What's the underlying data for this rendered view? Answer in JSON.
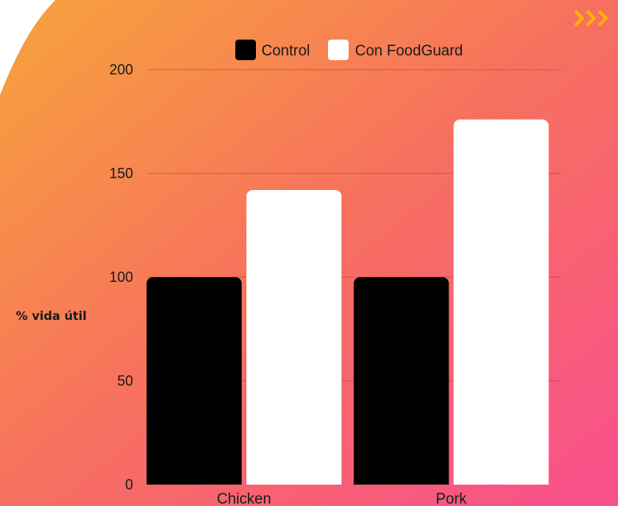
{
  "colors": {
    "gradient_start": "#f7a33b",
    "gradient_mid": "#f7705f",
    "gradient_end": "#f84f8e",
    "control": "#000000",
    "foodguard": "#ffffff",
    "accent_chevrons": "#ffb300"
  },
  "decorations": {
    "chevrons_icon": "triple-chevron-right-icon"
  },
  "chart_data": {
    "type": "bar",
    "categories": [
      "Chicken",
      "Pork"
    ],
    "series": [
      {
        "name": "Control",
        "values": [
          100,
          100
        ]
      },
      {
        "name": "Con FoodGuard",
        "values": [
          142,
          176
        ]
      }
    ],
    "ylabel": "% vida útil",
    "xlabel": "",
    "ylim": [
      0,
      200
    ],
    "yticks": [
      0,
      50,
      100,
      150,
      200
    ],
    "grid": true,
    "legend": "top-center"
  }
}
